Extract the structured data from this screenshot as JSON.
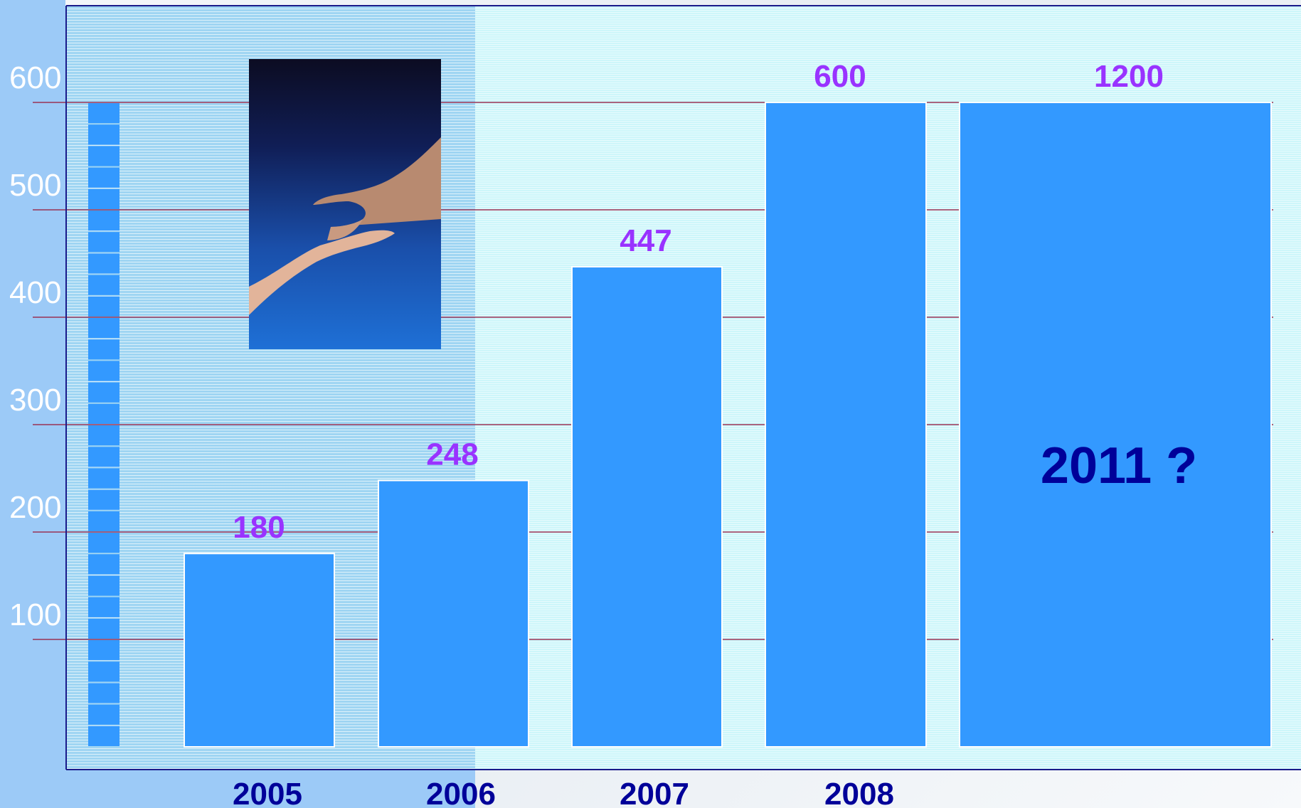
{
  "chart_data": {
    "type": "bar",
    "title": "",
    "xlabel": "",
    "ylabel": "",
    "ylim": [
      0,
      690
    ],
    "yticks": [
      "100",
      "200",
      "300",
      "400",
      "500",
      "600"
    ],
    "categories": [
      "2005",
      "2006",
      "2007",
      "2008",
      ""
    ],
    "values": [
      180,
      248,
      447,
      600,
      1200
    ],
    "value_labels": [
      "180",
      "248",
      "447",
      "600",
      "1200"
    ],
    "bar_overlay_label": "2011 ?",
    "grid": true,
    "colors": {
      "bar": "#3399ff",
      "value_label": "#9933ff",
      "category_label": "#000099",
      "gridline": "#993355",
      "tick_label": "#ffffff"
    }
  },
  "image": {
    "icon": "hands-reaching-photo"
  }
}
